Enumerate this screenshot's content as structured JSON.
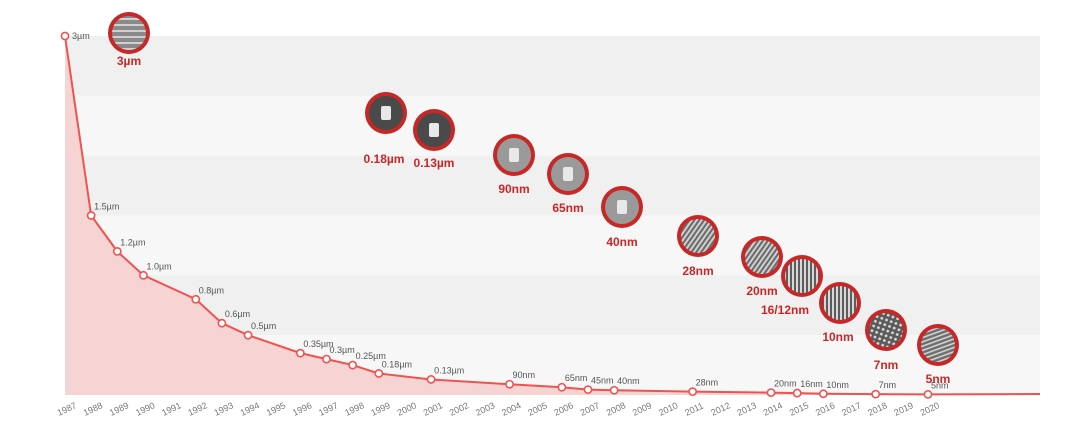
{
  "colors": {
    "accent": "#c62828",
    "line": "#ef5350",
    "area": "#f6d4d4",
    "band_dark": "#f0f0f0",
    "band_light": "#f7f7f7",
    "node_fill": "#555555"
  },
  "chart_data": {
    "type": "line",
    "title": "",
    "xlabel": "",
    "ylabel": "",
    "grid": false,
    "legend": "none",
    "x_tick_labels": [
      "1987",
      "1988",
      "1989",
      "1990",
      "1991",
      "1992",
      "1993",
      "1994",
      "1995",
      "1996",
      "1997",
      "1998",
      "1999",
      "2000",
      "2001",
      "2002",
      "2003",
      "2004",
      "2005",
      "2006",
      "2007",
      "2008",
      "2009",
      "2010",
      "2011",
      "2012",
      "2013",
      "2014",
      "2015",
      "2016",
      "2017",
      "2018",
      "2019",
      "2020"
    ],
    "xlim": [
      1987,
      2025
    ],
    "ylim_nm": [
      0,
      3000
    ],
    "points": [
      {
        "x": 1987,
        "y_nm": 3000,
        "label": "3µm"
      },
      {
        "x": 1988,
        "y_nm": 1500,
        "label": "1.5µm"
      },
      {
        "x": 1989,
        "y_nm": 1200,
        "label": "1.2µm"
      },
      {
        "x": 1990,
        "y_nm": 1000,
        "label": "1.0µm"
      },
      {
        "x": 1992,
        "y_nm": 800,
        "label": "0.8µm"
      },
      {
        "x": 1993,
        "y_nm": 600,
        "label": "0.6µm"
      },
      {
        "x": 1994,
        "y_nm": 500,
        "label": "0.5µm"
      },
      {
        "x": 1996,
        "y_nm": 350,
        "label": "0.35µm"
      },
      {
        "x": 1997,
        "y_nm": 300,
        "label": "0.3µm"
      },
      {
        "x": 1998,
        "y_nm": 250,
        "label": "0.25µm"
      },
      {
        "x": 1999,
        "y_nm": 180,
        "label": "0.18µm"
      },
      {
        "x": 2001,
        "y_nm": 130,
        "label": "0.13µm"
      },
      {
        "x": 2004,
        "y_nm": 90,
        "label": "90nm"
      },
      {
        "x": 2006,
        "y_nm": 65,
        "label": "65nm"
      },
      {
        "x": 2007,
        "y_nm": 45,
        "label": "45nm"
      },
      {
        "x": 2008,
        "y_nm": 40,
        "label": "40nm"
      },
      {
        "x": 2011,
        "y_nm": 28,
        "label": "28nm"
      },
      {
        "x": 2014,
        "y_nm": 20,
        "label": "20nm"
      },
      {
        "x": 2015,
        "y_nm": 16,
        "label": "16nm"
      },
      {
        "x": 2016,
        "y_nm": 10,
        "label": "10nm"
      },
      {
        "x": 2018,
        "y_nm": 7,
        "label": "7nm"
      },
      {
        "x": 2020,
        "y_nm": 5,
        "label": "5nm"
      }
    ],
    "node_images": [
      {
        "label": "3µm",
        "icon": "trench-sem-icon"
      },
      {
        "label": "0.18µm",
        "icon": "planar-transistor-sem-icon"
      },
      {
        "label": "0.13µm",
        "icon": "planar-transistor-sem-icon"
      },
      {
        "label": "90nm",
        "icon": "transistor-gate-sem-icon"
      },
      {
        "label": "65nm",
        "icon": "transistor-gate-sem-icon"
      },
      {
        "label": "40nm",
        "icon": "transistor-gate-sem-icon"
      },
      {
        "label": "28nm",
        "icon": "finfet-array-sem-icon"
      },
      {
        "label": "20nm",
        "icon": "finfet-array-sem-icon"
      },
      {
        "label": "16/12nm",
        "icon": "fin-lines-sem-icon"
      },
      {
        "label": "10nm",
        "icon": "fin-lines-sem-icon"
      },
      {
        "label": "7nm",
        "icon": "nanowire-grid-sem-icon"
      },
      {
        "label": "5nm",
        "icon": "nanosheet-sem-icon"
      }
    ]
  }
}
